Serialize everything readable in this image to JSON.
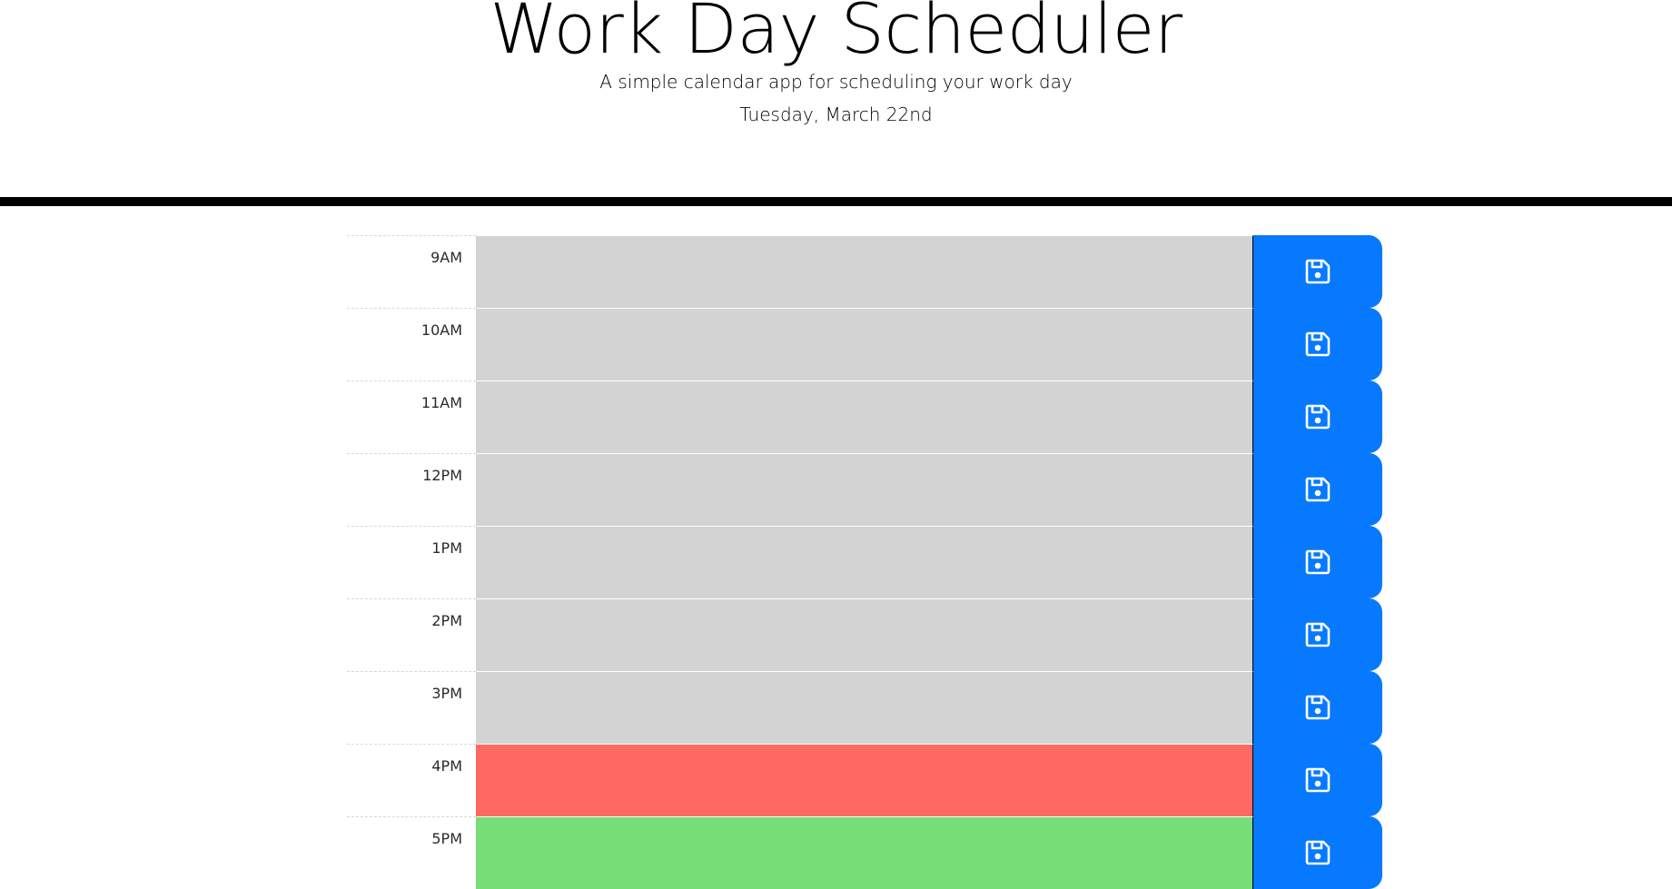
{
  "header": {
    "title": "Work Day Scheduler",
    "subtitle": "A simple calendar app for scheduling your work day",
    "current_day": "Tuesday, March 22nd"
  },
  "schedule": {
    "rows": [
      {
        "hour": "9AM",
        "status": "past",
        "text": ""
      },
      {
        "hour": "10AM",
        "status": "past",
        "text": ""
      },
      {
        "hour": "11AM",
        "status": "past",
        "text": ""
      },
      {
        "hour": "12PM",
        "status": "past",
        "text": ""
      },
      {
        "hour": "1PM",
        "status": "past",
        "text": ""
      },
      {
        "hour": "2PM",
        "status": "past",
        "text": ""
      },
      {
        "hour": "3PM",
        "status": "past",
        "text": ""
      },
      {
        "hour": "4PM",
        "status": "present",
        "text": ""
      },
      {
        "hour": "5PM",
        "status": "future",
        "text": ""
      }
    ],
    "save_icon": "save-icon"
  },
  "colors": {
    "past": "#d3d3d3",
    "present": "#ff6961",
    "future": "#77dd77",
    "save_button": "#0779ff"
  }
}
